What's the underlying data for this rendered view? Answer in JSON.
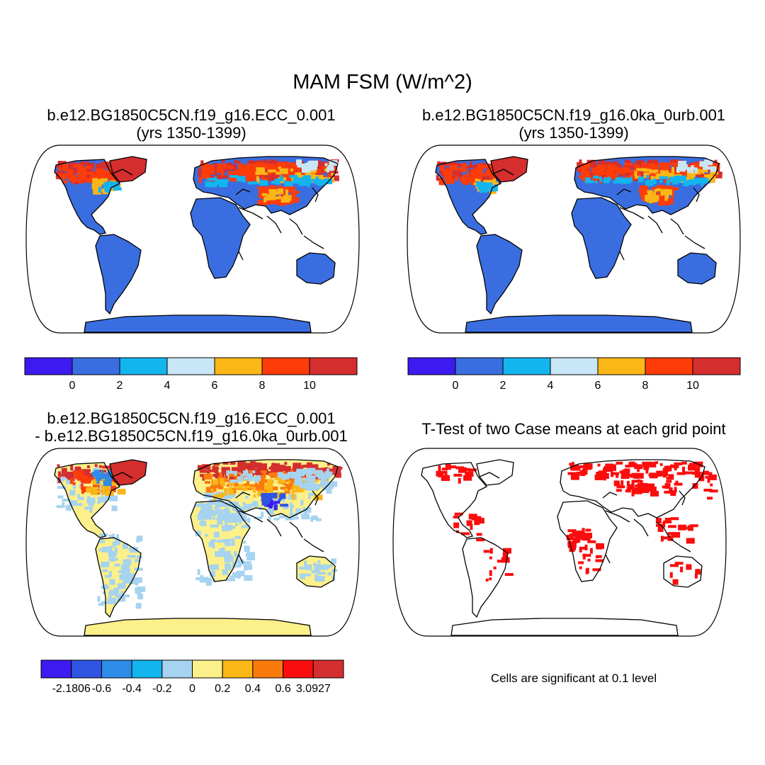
{
  "figure": {
    "title": "MAM FSM (W/m^2)"
  },
  "panels": [
    {
      "id": "ecc",
      "title_line1": "b.e12.BG1850C5CN.f19_g16.ECC_0.001",
      "title_line2": "(yrs 1350-1399)"
    },
    {
      "id": "ctrl",
      "title_line1": "b.e12.BG1850C5CN.f19_g16.0ka_0urb.001",
      "title_line2": "(yrs 1350-1399)"
    },
    {
      "id": "diff",
      "title_line1": "b.e12.BG1850C5CN.f19_g16.ECC_0.001",
      "title_line2": "- b.e12.BG1850C5CN.f19_g16.0ka_0urb.001"
    },
    {
      "id": "ttest",
      "title_line1": "T-Test of two Case means at each grid point",
      "note": "Cells are significant at 0.1 level"
    }
  ],
  "colorbars": {
    "absolute": {
      "colors": [
        "#3c1af0",
        "#3a6ee0",
        "#13b5ef",
        "#c8e6f6",
        "#fbb617",
        "#fd3c0a",
        "#d42e2e"
      ],
      "labels": [
        "0",
        "2",
        "4",
        "6",
        "8",
        "10"
      ]
    },
    "difference": {
      "colors": [
        "#3c1af0",
        "#2f55e2",
        "#2c8ce8",
        "#13b5ef",
        "#a6d3ef",
        "#fbf08a",
        "#fbb617",
        "#fb7a0c",
        "#fb0d0d",
        "#d42e2e"
      ],
      "labels": [
        "-2.1806",
        "-0.6",
        "-0.4",
        "-0.2",
        "0",
        "0.2",
        "0.4",
        "0.6",
        "3.0927"
      ]
    }
  },
  "map_colors": {
    "land_low": "#3a6ee0",
    "land_mid": "#13b5ef",
    "land_light": "#c8e6f6",
    "warm": "#fbb617",
    "hot": "#fd3c0a",
    "hottest": "#d42e2e",
    "diff_base": "#fbf08a",
    "diff_neg": "#a6d3ef",
    "diff_strong_neg": "#3c1af0",
    "significant": "#fb0d0d"
  }
}
